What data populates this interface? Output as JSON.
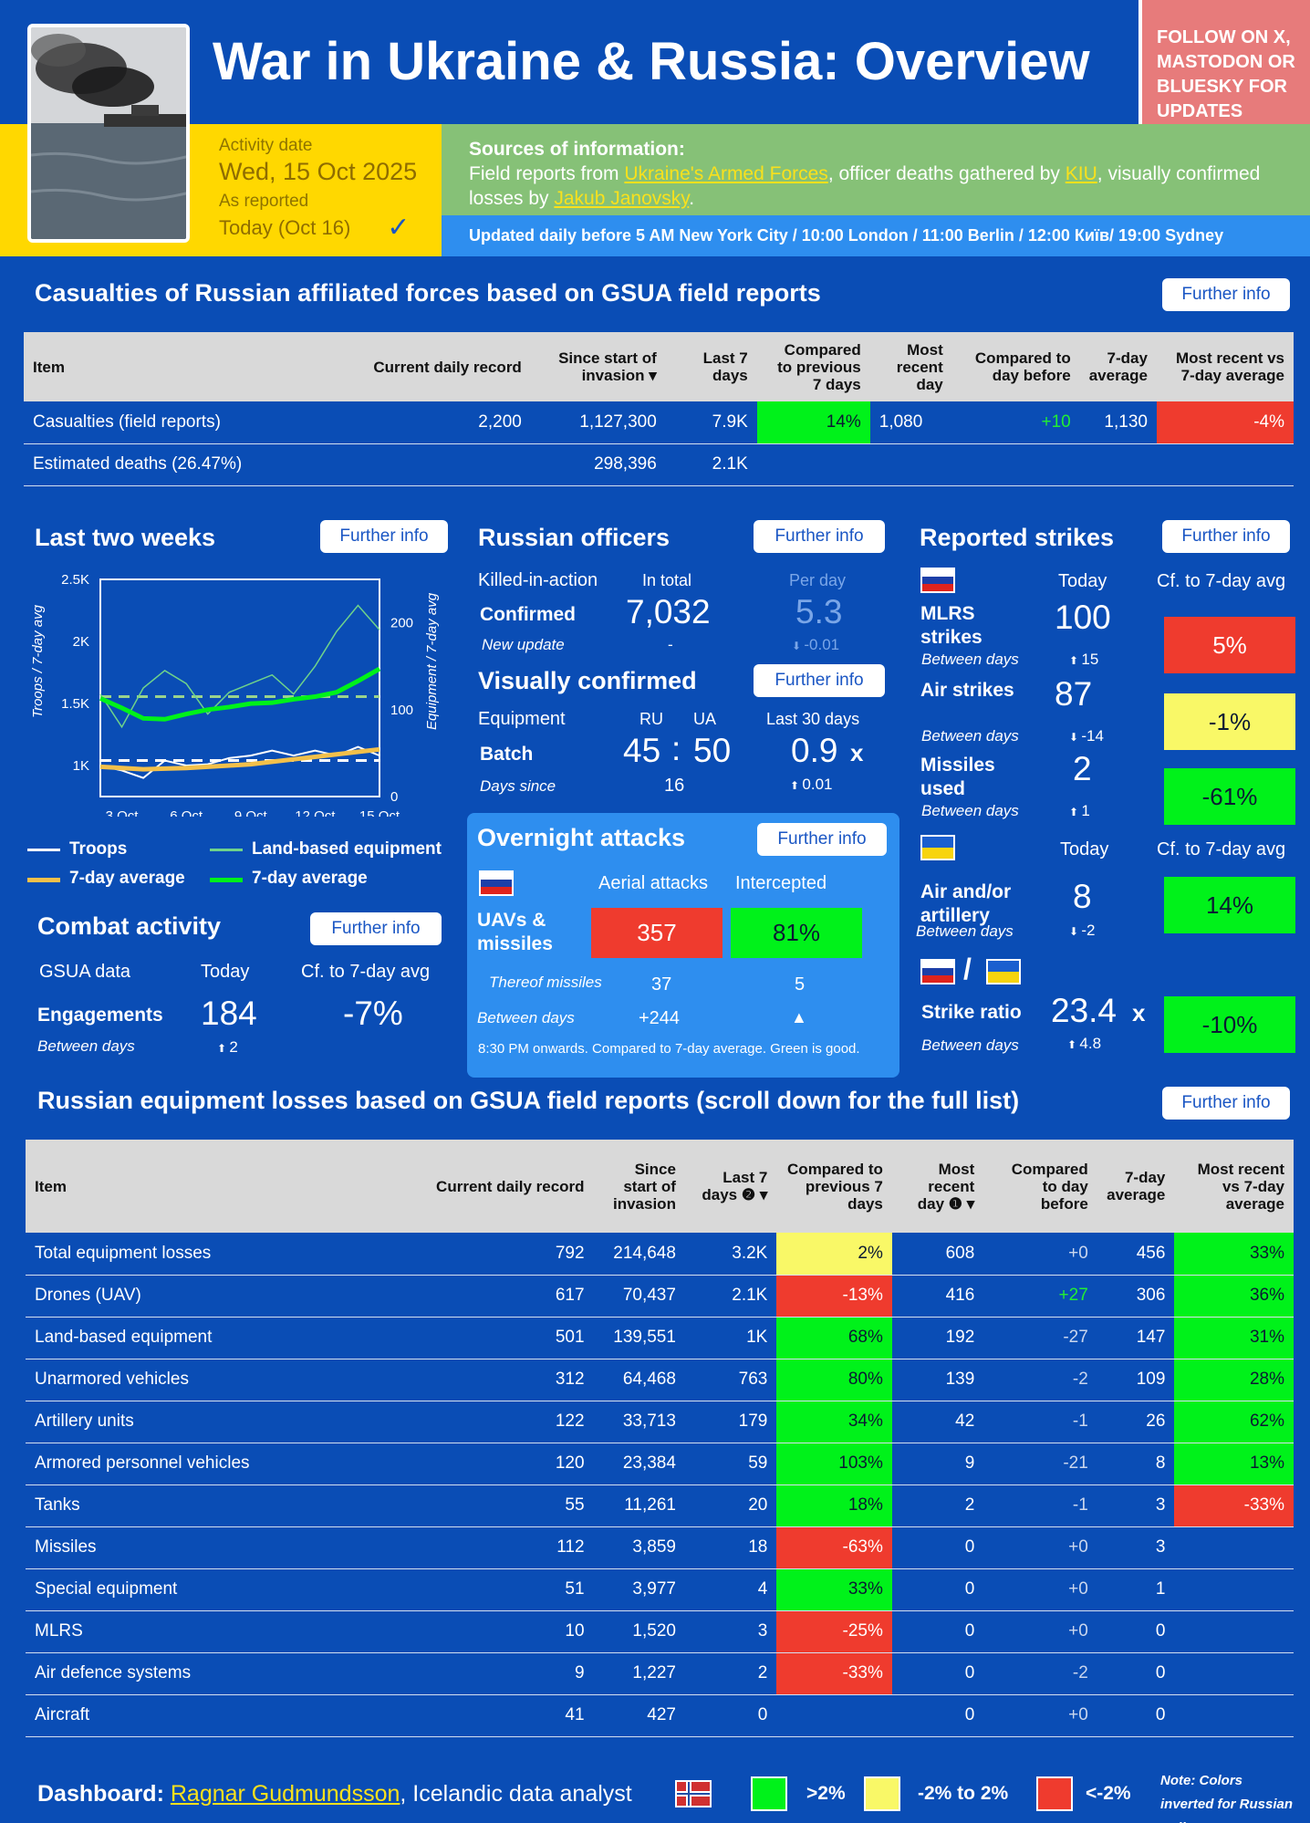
{
  "header": {
    "title": "War in Ukraine & Russia: Overview",
    "follow": "FOLLOW ON X, MASTODON OR BLUESKY FOR UPDATES",
    "activity_label": "Activity date",
    "activity_date": "Wed, 15 Oct 2025",
    "reported_label": "As reported",
    "reported_date": "Today (Oct 16)",
    "check": "✓",
    "sources_title": "Sources of information:",
    "sources_1": "Field reports from ",
    "sources_link1": "Ukraine's Armed Forces",
    "sources_2": ", officer deaths gathered by ",
    "sources_link2": "KIU",
    "sources_3": ", visually confirmed losses by ",
    "sources_link3": "Jakub Janovsky",
    "sources_4": ".",
    "updated": "Updated daily before 5 AM New York City / 10:00 London / 11:00 Berlin / 12:00 Київ/ 19:00 Sydney"
  },
  "further": "Further info",
  "casualties": {
    "title": "Casualties of Russian affiliated forces based on GSUA field reports",
    "headers": [
      "Item",
      "Current daily record",
      "Since start of invasion ▾",
      "Last 7 days",
      "Compared to previous 7 days",
      "Most recent day",
      "Compared to day before",
      "7-day average",
      "Most recent vs 7-day average"
    ],
    "rows": [
      [
        "Casualties (field reports)",
        "2,200",
        "1,127,300",
        "7.9K",
        "14%",
        "1,080",
        "+10",
        "1,130",
        "-4%"
      ],
      [
        "Estimated deaths (26.47%)",
        "",
        "298,396",
        "2.1K",
        "",
        "",
        "",
        "",
        ""
      ]
    ]
  },
  "two_weeks": {
    "title": "Last two weeks",
    "ylabel_left": "Troops / 7-day avg",
    "ylabel_right": "Equipment / 7-day avg",
    "yticks_left": [
      "2.5K",
      "2K",
      "1.5K",
      "1K"
    ],
    "yticks_right": [
      "200",
      "100",
      "0"
    ],
    "xticks": [
      "3 Oct",
      "6 Oct",
      "9 Oct",
      "12 Oct",
      "15 Oct"
    ],
    "legend": [
      "Troops",
      "Land-based equipment",
      "7-day average",
      "7-day average"
    ]
  },
  "chart_data": {
    "type": "line",
    "x": [
      "2 Oct",
      "3 Oct",
      "4 Oct",
      "5 Oct",
      "6 Oct",
      "7 Oct",
      "8 Oct",
      "9 Oct",
      "10 Oct",
      "11 Oct",
      "12 Oct",
      "13 Oct",
      "14 Oct",
      "15 Oct"
    ],
    "series": [
      {
        "name": "Troops",
        "axis": "left",
        "color": "#ffffff",
        "values": [
          1000,
          960,
          900,
          1040,
          1000,
          1010,
          1060,
          1080,
          1120,
          1080,
          1120,
          1080,
          1150,
          1080
        ]
      },
      {
        "name": "7-day average",
        "axis": "left",
        "color": "#f3c04a",
        "values": [
          990,
          980,
          970,
          975,
          980,
          990,
          1000,
          1010,
          1030,
          1050,
          1070,
          1090,
          1110,
          1130
        ]
      },
      {
        "name": "Land-based equipment",
        "axis": "right",
        "color": "#6fd38a",
        "values": [
          118,
          80,
          125,
          145,
          130,
          95,
          120,
          130,
          140,
          118,
          150,
          190,
          220,
          192
        ]
      },
      {
        "name": "7-day average",
        "axis": "right",
        "color": "#00f21a",
        "values": [
          113,
          102,
          90,
          89,
          95,
          100,
          103,
          107,
          108,
          112,
          115,
          120,
          133,
          147
        ]
      }
    ],
    "ylim_left": [
      750,
      2500
    ],
    "ylim_right": [
      0,
      250
    ],
    "reference_lines": [
      {
        "axis": "left",
        "value": 1040,
        "color": "#ffffff"
      },
      {
        "axis": "right",
        "value": 115,
        "color": "#9ad38c"
      }
    ],
    "xlabel": "",
    "ylabel": "Troops / 7-day avg"
  },
  "officers": {
    "title": "Russian officers",
    "kia": "Killed-in-action",
    "in_total": "In total",
    "per_day": "Per day",
    "confirmed": "Confirmed",
    "total": "7,032",
    "per_day_val": "5.3",
    "new_update": "New update",
    "dash": "-",
    "delta": "-0.01"
  },
  "visual": {
    "title": "Visually confirmed",
    "equipment": "Equipment",
    "ru": "RU",
    "ua": "UA",
    "last30": "Last 30 days",
    "batch": "Batch",
    "ru_val": "45",
    "colon": ":",
    "ua_val": "50",
    "ratio": "0.9",
    "x": "x",
    "days_since": "Days since",
    "days_val": "16",
    "ratio_delta": "0.01"
  },
  "overnight": {
    "title": "Overnight attacks",
    "aerial": "Aerial attacks",
    "intercepted": "Intercepted",
    "uavs": "UAVs & missiles",
    "attacks": "357",
    "intercepted_pct": "81%",
    "thereof": "Thereof missiles",
    "missiles": "37",
    "missiles_int": "5",
    "between": "Between days",
    "between_val": "+244",
    "between_int": "▲",
    "note": "8:30 PM onwards. Compared to 7-day average. Green is good."
  },
  "strikes": {
    "title": "Reported strikes",
    "today": "Today",
    "cf": "Cf. to 7-day avg",
    "between": "Between days",
    "items": [
      {
        "label": "MLRS strikes",
        "today": "100",
        "delta": "15",
        "pct": "5%"
      },
      {
        "label": "Air strikes",
        "today": "87",
        "delta": "-14",
        "pct": "-1%"
      },
      {
        "label": "Missiles used",
        "today": "2",
        "delta": "1",
        "pct": "-61%"
      }
    ],
    "ua_label": "Air and/or artillery",
    "ua_today": "8",
    "ua_delta": "-2",
    "ua_pct": "14%",
    "slash": "/",
    "ratio_label": "Strike ratio",
    "ratio": "23.4",
    "ratio_x": "x",
    "ratio_delta": "4.8",
    "ratio_pct": "-10%"
  },
  "combat": {
    "title": "Combat activity",
    "gsua": "GSUA data",
    "today": "Today",
    "cf": "Cf. to 7-day avg",
    "engagements": "Engagements",
    "val": "184",
    "pct": "-7%",
    "between": "Between days",
    "delta": "2"
  },
  "equipment": {
    "title": "Russian equipment losses based on GSUA field reports (scroll down for the full list)",
    "headers": [
      "Item",
      "Current daily record",
      "Since start of invasion",
      "Last 7 days ❷ ▾",
      "Compared to previous 7 days",
      "Most recent day ❶ ▾",
      "Compared to day before",
      "7-day average",
      "Most recent vs 7-day average"
    ],
    "rows": [
      [
        "Total equipment losses",
        "792",
        "214,648",
        "3.2K",
        "2%",
        "608",
        "+0",
        "456",
        "33%"
      ],
      [
        "Drones (UAV)",
        "617",
        "70,437",
        "2.1K",
        "-13%",
        "416",
        "+27",
        "306",
        "36%"
      ],
      [
        "Land-based equipment",
        "501",
        "139,551",
        "1K",
        "68%",
        "192",
        "-27",
        "147",
        "31%"
      ],
      [
        "Unarmored vehicles",
        "312",
        "64,468",
        "763",
        "80%",
        "139",
        "-2",
        "109",
        "28%"
      ],
      [
        "Artillery units",
        "122",
        "33,713",
        "179",
        "34%",
        "42",
        "-1",
        "26",
        "62%"
      ],
      [
        "Armored personnel vehicles",
        "120",
        "23,384",
        "59",
        "103%",
        "9",
        "-21",
        "8",
        "13%"
      ],
      [
        "Tanks",
        "55",
        "11,261",
        "20",
        "18%",
        "2",
        "-1",
        "3",
        "-33%"
      ],
      [
        "Missiles",
        "112",
        "3,859",
        "18",
        "-63%",
        "0",
        "+0",
        "3",
        ""
      ],
      [
        "Special equipment",
        "51",
        "3,977",
        "4",
        "33%",
        "0",
        "+0",
        "1",
        ""
      ],
      [
        "MLRS",
        "10",
        "1,520",
        "3",
        "-25%",
        "0",
        "+0",
        "0",
        ""
      ],
      [
        "Air defence systems",
        "9",
        "1,227",
        "2",
        "-33%",
        "0",
        "-2",
        "0",
        ""
      ],
      [
        "Aircraft",
        "41",
        "427",
        "0",
        "",
        "0",
        "+0",
        "0",
        ""
      ]
    ],
    "cmp_colors": [
      "yellow",
      "red",
      "green",
      "green",
      "green",
      "green",
      "green",
      "red",
      "green",
      "red",
      "red",
      ""
    ],
    "vs_colors": [
      "green",
      "green",
      "green",
      "green",
      "green",
      "green",
      "red",
      "",
      "",
      "",
      "",
      ""
    ]
  },
  "footer": {
    "dashboard": "Dashboard: ",
    "author": "Ragnar Gudmundsson",
    "rest": ", Icelandic data analyst",
    "l1": ">2%",
    "l2": "-2% to 2%",
    "l3": "<-2%",
    "note": "Note: Colors inverted for Russian strikes"
  }
}
